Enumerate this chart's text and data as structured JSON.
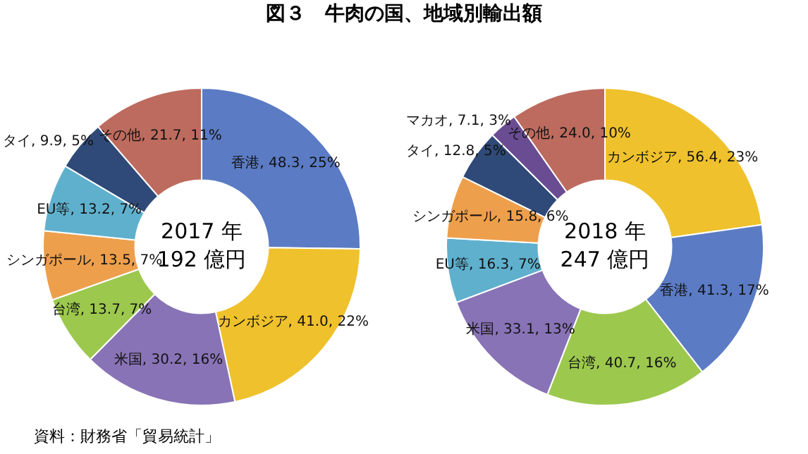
{
  "chart_data": [
    {
      "type": "donut",
      "title": "図３　牛肉の国、地域別輸出額",
      "categories": [
        "香港",
        "カンボジア",
        "米国",
        "台湾",
        "シンガポール",
        "EU等",
        "タイ",
        "その他"
      ],
      "values": [
        48.3,
        41.0,
        30.2,
        13.7,
        13.5,
        13.2,
        9.9,
        21.7
      ],
      "value_labels": [
        "48.3, 25%",
        "41.0, 22%",
        "30.2, 16%",
        "13.7, 7%",
        "13.5, 7%",
        "13.2, 7%",
        "9.9, 5%",
        "21.7, 11%"
      ],
      "colors": [
        "#5b7bc4",
        "#efc12c",
        "#8873b6",
        "#9cc84e",
        "#ee9f4c",
        "#5fb0cd",
        "#2f4a78",
        "#bd6b5e"
      ],
      "annotations": [
        "2017 年",
        "192 億円",
        "資料：財務省「貿易統計」"
      ],
      "legend": false
    },
    {
      "type": "donut",
      "categories": [
        "カンボジア",
        "香港",
        "台湾",
        "米国",
        "EU等",
        "シンガポール",
        "タイ",
        "マカオ",
        "その他"
      ],
      "values": [
        56.4,
        41.3,
        40.7,
        33.1,
        16.3,
        15.8,
        12.8,
        7.1,
        24.0
      ],
      "value_labels": [
        "56.4, 23%",
        "41.3, 17%",
        "40.7, 16%",
        "33.1, 13%",
        "16.3, 7%",
        "15.8, 6%",
        "12.8, 5%",
        "7.1, 3%",
        "24.0, 10%"
      ],
      "colors": [
        "#efc12c",
        "#5b7bc4",
        "#9cc84e",
        "#8873b6",
        "#5fb0cd",
        "#ee9f4c",
        "#2f4a78",
        "#6a4c93",
        "#bd6b5e"
      ],
      "annotations": [
        "2018 年",
        "247 億円"
      ],
      "legend": false
    }
  ]
}
